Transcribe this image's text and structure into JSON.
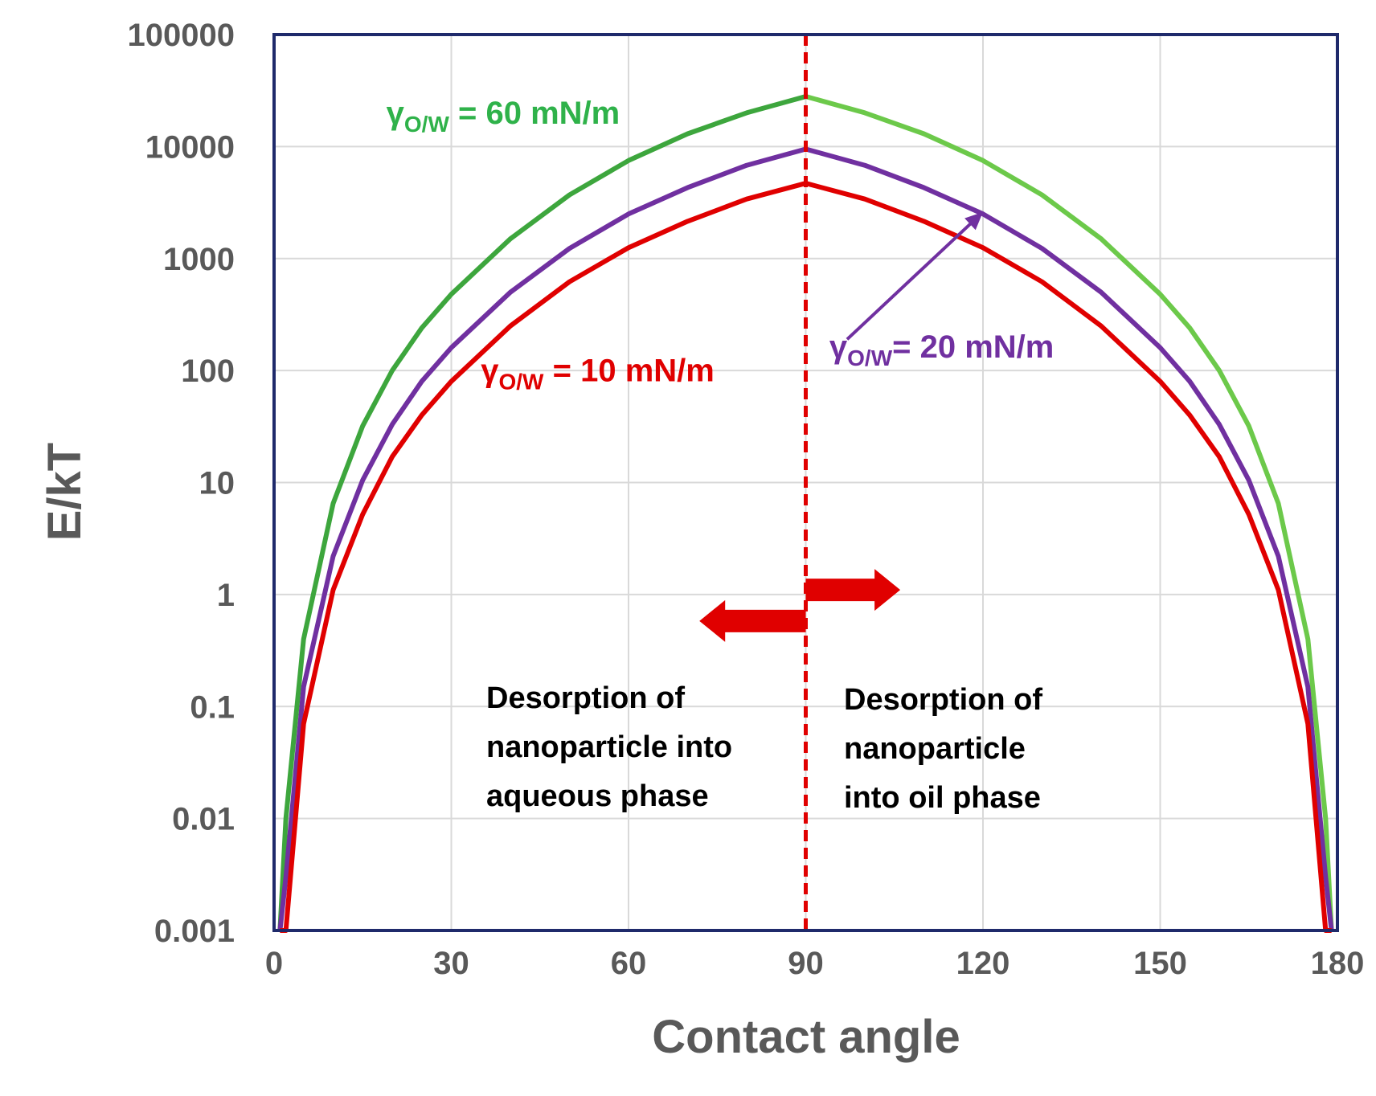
{
  "chart_data": {
    "type": "line",
    "title": "",
    "xlabel": "Contact angle",
    "ylabel": "E/kT",
    "xscale": "linear",
    "yscale": "log",
    "xlim": [
      0,
      180
    ],
    "ylim": [
      0.001,
      100000
    ],
    "xticks": [
      0,
      30,
      60,
      90,
      120,
      150,
      180
    ],
    "yticks": [
      0.001,
      0.01,
      0.1,
      1,
      10,
      100,
      1000,
      10000,
      100000
    ],
    "x_tick_labels": [
      "0",
      "30",
      "60",
      "90",
      "120",
      "150",
      "180"
    ],
    "y_tick_labels": [
      "0.001",
      "0.01",
      "0.1",
      "1",
      "10",
      "100",
      "1000",
      "10000",
      "100000"
    ],
    "grid": true,
    "x": [
      1,
      2,
      5,
      10,
      15,
      20,
      25,
      30,
      40,
      50,
      60,
      70,
      80,
      90,
      100,
      110,
      120,
      130,
      140,
      150,
      155,
      160,
      165,
      170,
      175,
      178,
      179
    ],
    "series": [
      {
        "name": "γO/W = 60 mN/m",
        "color": "#3da63d",
        "color_right": "#6cc94a",
        "values": [
          0.001,
          0.01,
          0.4,
          6.5,
          32,
          100,
          240,
          480,
          1500,
          3700,
          7500,
          13000,
          20000,
          28000,
          20000,
          13000,
          7500,
          3700,
          1500,
          480,
          240,
          100,
          32,
          6.5,
          0.4,
          0.01,
          0.001
        ]
      },
      {
        "name": "γO/W = 20 mN/m",
        "color": "#7030a0",
        "values": [
          0.001,
          0.003,
          0.15,
          2.2,
          10.5,
          33,
          80,
          160,
          500,
          1230,
          2500,
          4300,
          6800,
          9500,
          6800,
          4300,
          2500,
          1230,
          500,
          160,
          80,
          33,
          10.5,
          2.2,
          0.15,
          0.003,
          0.001
        ]
      },
      {
        "name": "γO/W = 10 mN/m",
        "color": "#e00000",
        "values": [
          0.001,
          0.001,
          0.07,
          1.1,
          5.2,
          17,
          40,
          80,
          250,
          620,
          1250,
          2150,
          3400,
          4700,
          3400,
          2150,
          1250,
          620,
          250,
          80,
          40,
          17,
          5.2,
          1.1,
          0.07,
          0.001,
          0.001
        ]
      }
    ],
    "annotations": {
      "divider": {
        "x": 90,
        "style": "dashed",
        "color": "#e00000"
      },
      "label_60": {
        "gamma": "γ",
        "sub": "O/W",
        "text": " = 60 mN/m",
        "x": 19,
        "y": 16000
      },
      "label_20": {
        "gamma": "γ",
        "sub": "O/W",
        "text": "= 20 mN/m",
        "x": 94,
        "y": 130,
        "arrow_from": [
          97,
          190
        ],
        "arrow_to": [
          120,
          2600
        ]
      },
      "label_10": {
        "gamma": "γ",
        "sub": "O/W",
        "text": " = 10 mN/m",
        "x": 35,
        "y": 80
      },
      "arrow_left": {
        "from_x": 90,
        "to_x": 72,
        "y": 0.58
      },
      "arrow_right": {
        "from_x": 90,
        "to_x": 106,
        "y": 1.1
      },
      "desc_left": {
        "lines": [
          "Desorption of",
          "nanoparticle into",
          "aqueous phase"
        ]
      },
      "desc_right": {
        "lines": [
          "Desorption of",
          "nanoparticle",
          "into oil phase"
        ]
      }
    },
    "colors": {
      "frame": "#1f2a6b",
      "grid": "#d9d9d9",
      "text": "#595959",
      "arrow": "#e00000"
    }
  }
}
